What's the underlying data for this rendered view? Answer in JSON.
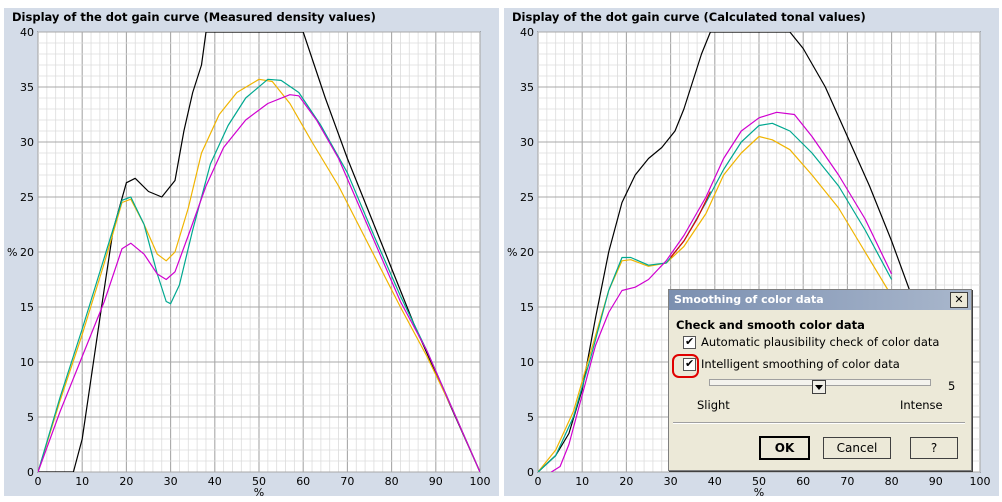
{
  "left_panel": {
    "title": "Display of the dot gain curve (Measured density values)"
  },
  "right_panel": {
    "title": "Display of the dot gain curve (Calculated tonal values)"
  },
  "dialog": {
    "title": "Smoothing of color data",
    "close_label": "✕",
    "section_label": "Check and smooth color data",
    "checkbox1_label": "Automatic plausibility check of color data",
    "checkbox1_checked": true,
    "checkbox2_label": "Intelligent smoothing of color data",
    "checkbox2_checked": true,
    "check_glyph": "✔",
    "slider_value": "5",
    "slider_level": 5,
    "slider_min_label": "Slight",
    "slider_max_label": "Intense",
    "ok_label": "OK",
    "cancel_label": "Cancel",
    "help_label": "?"
  },
  "chart_data": [
    {
      "type": "line",
      "title": "Display of the dot gain curve (Measured density values)",
      "xlabel": "%",
      "ylabel": "%",
      "xlim": [
        0,
        100
      ],
      "ylim": [
        0,
        40
      ],
      "x_ticks": [
        0,
        10,
        20,
        30,
        40,
        50,
        60,
        70,
        80,
        90,
        100
      ],
      "y_ticks": [
        0,
        5,
        10,
        15,
        20,
        25,
        30,
        35,
        40
      ],
      "grid": true,
      "series": [
        {
          "color": "#000000",
          "points": [
            [
              0,
              0
            ],
            [
              8,
              0
            ],
            [
              10,
              3
            ],
            [
              14,
              14
            ],
            [
              17,
              22
            ],
            [
              20,
              26.3
            ],
            [
              22,
              26.7
            ],
            [
              25,
              25.5
            ],
            [
              28,
              25
            ],
            [
              31,
              26.5
            ],
            [
              33,
              31
            ],
            [
              35,
              34.5
            ],
            [
              37,
              37
            ],
            [
              38,
              40
            ],
            [
              60,
              40
            ],
            [
              65,
              34
            ],
            [
              70,
              28.5
            ],
            [
              75,
              23.5
            ],
            [
              80,
              18.5
            ],
            [
              85,
              13.5
            ],
            [
              90,
              9
            ],
            [
              95,
              4.5
            ],
            [
              100,
              0
            ]
          ]
        },
        {
          "color": "#f0b400",
          "points": [
            [
              0,
              0
            ],
            [
              5,
              6.5
            ],
            [
              10,
              12.5
            ],
            [
              15,
              19
            ],
            [
              19,
              24.5
            ],
            [
              21,
              24.8
            ],
            [
              24,
              22.5
            ],
            [
              27,
              19.8
            ],
            [
              29,
              19.2
            ],
            [
              31,
              20
            ],
            [
              34,
              24
            ],
            [
              37,
              29
            ],
            [
              41,
              32.5
            ],
            [
              45,
              34.5
            ],
            [
              50,
              35.7
            ],
            [
              53,
              35.5
            ],
            [
              57,
              33.5
            ],
            [
              62,
              30
            ],
            [
              68,
              26
            ],
            [
              75,
              20.5
            ],
            [
              82,
              15
            ],
            [
              88,
              10.5
            ],
            [
              94,
              5.5
            ],
            [
              100,
              0
            ]
          ]
        },
        {
          "color": "#00a890",
          "points": [
            [
              0,
              0
            ],
            [
              5,
              6.8
            ],
            [
              10,
              13
            ],
            [
              15,
              19.5
            ],
            [
              19,
              24.7
            ],
            [
              21,
              25
            ],
            [
              24,
              22.5
            ],
            [
              27,
              18
            ],
            [
              29,
              15.5
            ],
            [
              30,
              15.3
            ],
            [
              32,
              17
            ],
            [
              35,
              22
            ],
            [
              39,
              28
            ],
            [
              43,
              31.5
            ],
            [
              47,
              34
            ],
            [
              52,
              35.7
            ],
            [
              55,
              35.6
            ],
            [
              59,
              34.5
            ],
            [
              64,
              31.5
            ],
            [
              70,
              27.2
            ],
            [
              76,
              21.5
            ],
            [
              82,
              16
            ],
            [
              88,
              11
            ],
            [
              94,
              5.5
            ],
            [
              100,
              0
            ]
          ]
        },
        {
          "color": "#d000d0",
          "points": [
            [
              0,
              0
            ],
            [
              5,
              5.5
            ],
            [
              10,
              10.5
            ],
            [
              15,
              15.5
            ],
            [
              19,
              20.3
            ],
            [
              21,
              20.8
            ],
            [
              24,
              19.8
            ],
            [
              27,
              18
            ],
            [
              29,
              17.5
            ],
            [
              31,
              18.2
            ],
            [
              34,
              21.5
            ],
            [
              38,
              26
            ],
            [
              42,
              29.5
            ],
            [
              47,
              32
            ],
            [
              52,
              33.5
            ],
            [
              57,
              34.3
            ],
            [
              59,
              34.2
            ],
            [
              63,
              32
            ],
            [
              68,
              28.5
            ],
            [
              75,
              22
            ],
            [
              82,
              15.5
            ],
            [
              88,
              11
            ],
            [
              94,
              5.5
            ],
            [
              100,
              0
            ]
          ]
        }
      ]
    },
    {
      "type": "line",
      "title": "Display of the dot gain curve (Calculated tonal values)",
      "xlabel": "%",
      "ylabel": "%",
      "xlim": [
        0,
        100
      ],
      "ylim": [
        0,
        40
      ],
      "x_ticks": [
        0,
        10,
        20,
        30,
        40,
        50,
        60,
        70,
        80,
        90,
        100
      ],
      "y_ticks": [
        0,
        5,
        10,
        15,
        20,
        25,
        30,
        35,
        40
      ],
      "grid": true,
      "series": [
        {
          "color": "#000000",
          "points": [
            [
              0,
              0
            ],
            [
              4,
              1.5
            ],
            [
              7,
              3.5
            ],
            [
              10,
              7.5
            ],
            [
              13,
              14
            ],
            [
              16,
              20
            ],
            [
              19,
              24.5
            ],
            [
              22,
              27
            ],
            [
              25,
              28.5
            ],
            [
              28,
              29.5
            ],
            [
              31,
              31
            ],
            [
              33,
              33
            ],
            [
              35,
              35.5
            ],
            [
              37,
              38
            ],
            [
              39,
              40
            ],
            [
              57,
              40
            ],
            [
              60,
              38.5
            ],
            [
              65,
              35
            ],
            [
              70,
              30.5
            ],
            [
              75,
              26
            ],
            [
              80,
              21
            ],
            [
              85,
              15.5
            ]
          ]
        },
        {
          "color": "#f0b400",
          "points": [
            [
              0,
              0
            ],
            [
              4,
              2
            ],
            [
              8,
              5.5
            ],
            [
              12,
              11
            ],
            [
              16,
              16.5
            ],
            [
              19,
              19.2
            ],
            [
              21,
              19.3
            ],
            [
              25,
              18.7
            ],
            [
              29,
              19
            ],
            [
              33,
              20.5
            ],
            [
              38,
              23.5
            ],
            [
              42,
              27
            ],
            [
              46,
              29
            ],
            [
              50,
              30.5
            ],
            [
              53,
              30.2
            ],
            [
              57,
              29.3
            ],
            [
              62,
              27
            ],
            [
              68,
              24
            ],
            [
              74,
              20
            ],
            [
              80,
              16
            ]
          ]
        },
        {
          "color": "#00a890",
          "points": [
            [
              0,
              0
            ],
            [
              4,
              1.5
            ],
            [
              8,
              5
            ],
            [
              12,
              10.5
            ],
            [
              16,
              16.5
            ],
            [
              19,
              19.5
            ],
            [
              21,
              19.5
            ],
            [
              25,
              18.8
            ],
            [
              29,
              19
            ],
            [
              33,
              21
            ],
            [
              38,
              24.5
            ],
            [
              42,
              27.5
            ],
            [
              46,
              30
            ],
            [
              50,
              31.5
            ],
            [
              53,
              31.7
            ],
            [
              57,
              31
            ],
            [
              62,
              29
            ],
            [
              68,
              26
            ],
            [
              74,
              22
            ],
            [
              80,
              17.5
            ]
          ]
        },
        {
          "color": "#d000d0",
          "points": [
            [
              3,
              0
            ],
            [
              5,
              0.5
            ],
            [
              7,
              2.5
            ],
            [
              10,
              7
            ],
            [
              13,
              11.5
            ],
            [
              16,
              14.5
            ],
            [
              19,
              16.5
            ],
            [
              22,
              16.8
            ],
            [
              25,
              17.5
            ],
            [
              29,
              19.2
            ],
            [
              33,
              21.5
            ],
            [
              38,
              25
            ],
            [
              42,
              28.5
            ],
            [
              46,
              31
            ],
            [
              50,
              32.2
            ],
            [
              54,
              32.7
            ],
            [
              58,
              32.5
            ],
            [
              62,
              30.5
            ],
            [
              68,
              27
            ],
            [
              74,
              23
            ],
            [
              80,
              18
            ]
          ]
        },
        {
          "color": "#e00000",
          "points": [
            [
              30,
              19.5
            ],
            [
              33,
              21
            ],
            [
              36,
              23
            ],
            [
              39,
              25.5
            ]
          ]
        }
      ]
    }
  ]
}
